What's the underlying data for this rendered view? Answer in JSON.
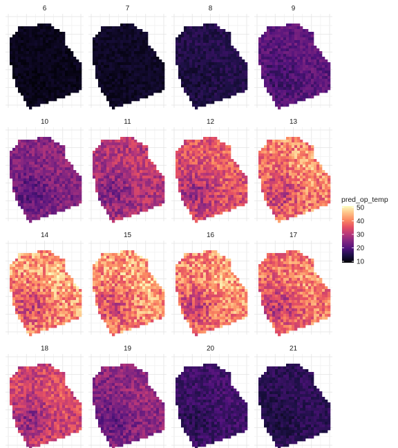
{
  "chart_data": {
    "type": "heatmap",
    "layout": "facet_wrap 4x4",
    "grid": true,
    "legend_position": "right",
    "palette": "magma",
    "colors": {
      "background": "#ffffff",
      "grid_major": "#e3e3e3",
      "grid_minor": "#f1f1f1",
      "strip_text": "#1a1a1a"
    },
    "legend": {
      "title": "pred_op_temp",
      "limits": [
        9,
        51
      ],
      "ticks": [
        10,
        20,
        30,
        40,
        50
      ],
      "tick_labels": [
        "10",
        "20",
        "30",
        "40",
        "50"
      ]
    },
    "facets": [
      {
        "label": "6",
        "mean_temp": 11
      },
      {
        "label": "7",
        "mean_temp": 12
      },
      {
        "label": "8",
        "mean_temp": 15
      },
      {
        "label": "9",
        "mean_temp": 21
      },
      {
        "label": "10",
        "mean_temp": 25
      },
      {
        "label": "11",
        "mean_temp": 30
      },
      {
        "label": "12",
        "mean_temp": 35
      },
      {
        "label": "13",
        "mean_temp": 40
      },
      {
        "label": "14",
        "mean_temp": 42
      },
      {
        "label": "15",
        "mean_temp": 42
      },
      {
        "label": "16",
        "mean_temp": 41
      },
      {
        "label": "17",
        "mean_temp": 39
      },
      {
        "label": "18",
        "mean_temp": 33
      },
      {
        "label": "19",
        "mean_temp": 26
      },
      {
        "label": "20",
        "mean_temp": 18
      },
      {
        "label": "21",
        "mean_temp": 16
      }
    ]
  }
}
